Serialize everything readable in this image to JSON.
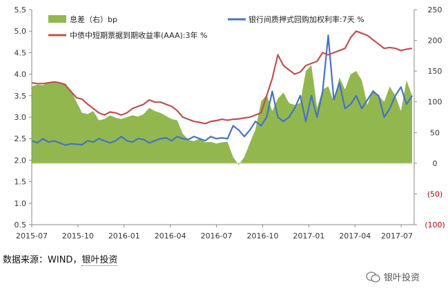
{
  "chart_data": {
    "type": "line",
    "x_ticks": [
      "2015-07",
      "2015-10",
      "2016-01",
      "2016-04",
      "2016-07",
      "2016-10",
      "2017-01",
      "2017-04",
      "2017-07"
    ],
    "y_left": {
      "min": 0.5,
      "max": 5.5,
      "ticks": [
        "0.5",
        "1.0",
        "1.5",
        "2.0",
        "2.5",
        "3.0",
        "3.5",
        "4.0",
        "4.5",
        "5.0",
        "5.5"
      ]
    },
    "y_right": {
      "min": -100,
      "max": 250,
      "ticks": [
        "250",
        "200",
        "150",
        "100",
        "50",
        "0",
        "(50)",
        "(100)"
      ]
    },
    "series": [
      {
        "name": "息差（右）bp",
        "type": "area",
        "axis": "right",
        "color": "#92b74f",
        "values": [
          125,
          128,
          127,
          132,
          133,
          131,
          130,
          118,
          100,
          82,
          80,
          85,
          70,
          72,
          78,
          74,
          72,
          75,
          78,
          76,
          80,
          90,
          85,
          82,
          77,
          72,
          70,
          48,
          38,
          36,
          40,
          34,
          35,
          32,
          34,
          35,
          10,
          -3,
          10,
          33,
          55,
          100,
          112,
          85,
          105,
          115,
          98,
          95,
          98,
          150,
          160,
          90,
          120,
          125,
          100,
          140,
          120,
          145,
          150,
          135,
          95,
          120,
          110,
          100,
          125,
          110,
          85,
          135,
          110
        ]
      },
      {
        "name": "银行间质押式回购加权利率:7天  %",
        "type": "line",
        "axis": "left",
        "color": "#4472c4",
        "values": [
          2.45,
          2.4,
          2.5,
          2.42,
          2.45,
          2.4,
          2.35,
          2.38,
          2.37,
          2.36,
          2.45,
          2.42,
          2.5,
          2.45,
          2.4,
          2.45,
          2.55,
          2.45,
          2.42,
          2.5,
          2.48,
          2.4,
          2.45,
          2.5,
          2.52,
          2.45,
          2.55,
          2.5,
          2.48,
          2.55,
          2.5,
          2.45,
          2.55,
          2.5,
          2.52,
          2.5,
          2.8,
          2.7,
          2.55,
          2.7,
          2.9,
          2.8,
          3.0,
          3.6,
          3.0,
          2.9,
          3.0,
          3.2,
          3.5,
          2.9,
          3.5,
          3.0,
          3.6,
          4.9,
          3.4,
          3.8,
          3.2,
          3.3,
          3.5,
          3.2,
          3.4,
          3.6,
          3.5,
          3.0,
          3.2,
          3.5,
          3.7,
          3.3,
          3.5
        ]
      },
      {
        "name": "中债中短期票据到期收益率(AAA):3年  %",
        "type": "line",
        "axis": "left",
        "color": "#c0504d",
        "values": [
          3.8,
          3.78,
          3.78,
          3.8,
          3.82,
          3.8,
          3.75,
          3.6,
          3.45,
          3.42,
          3.3,
          3.2,
          3.1,
          3.05,
          3.12,
          3.1,
          3.05,
          3.1,
          3.2,
          3.25,
          3.3,
          3.4,
          3.35,
          3.35,
          3.3,
          3.25,
          3.15,
          3.0,
          2.95,
          2.9,
          2.88,
          2.85,
          2.9,
          2.92,
          2.95,
          2.93,
          2.95,
          2.96,
          2.98,
          3.0,
          3.05,
          3.1,
          3.5,
          3.9,
          4.45,
          4.2,
          4.1,
          4.0,
          4.05,
          4.2,
          4.25,
          4.3,
          4.5,
          4.45,
          4.5,
          4.55,
          4.6,
          4.85,
          5.0,
          4.95,
          4.9,
          4.8,
          4.7,
          4.6,
          4.62,
          4.6,
          4.55,
          4.58,
          4.6
        ]
      }
    ]
  },
  "source_label": "数据来源：WIND，",
  "source_brand": "银叶投资",
  "watermark_text": "银叶投资"
}
